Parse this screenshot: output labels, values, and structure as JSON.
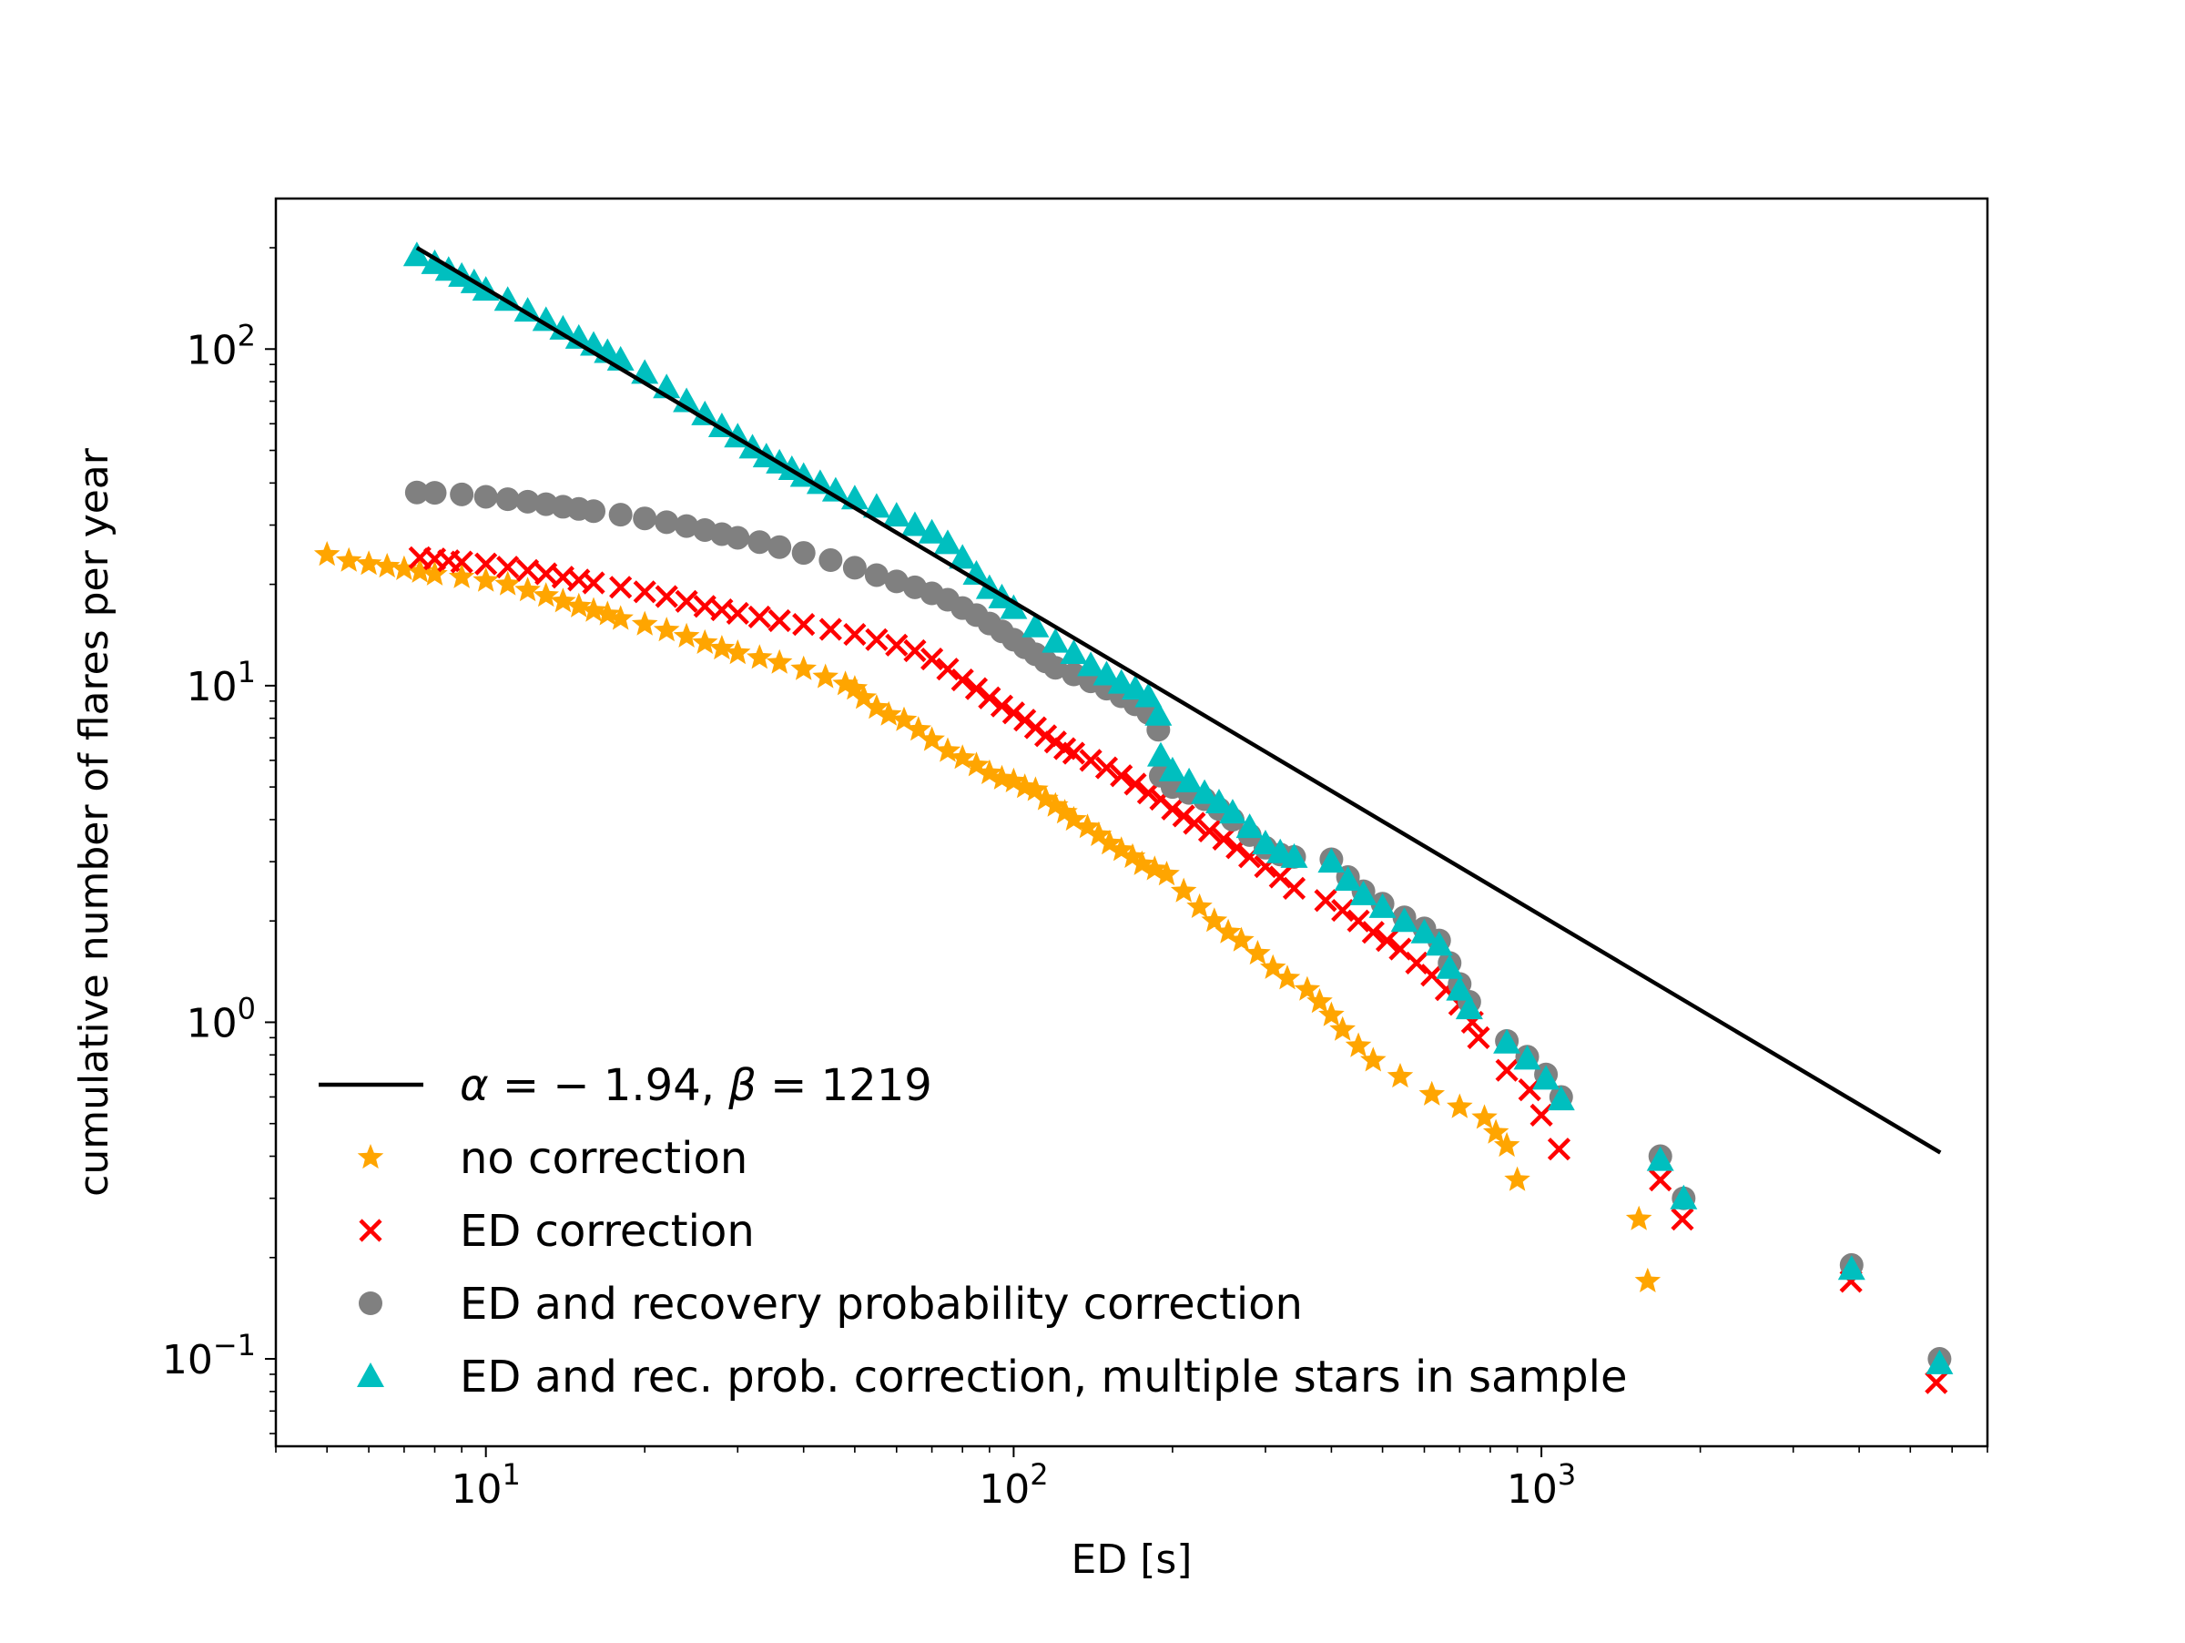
{
  "chart_data": {
    "type": "scatter",
    "title": "",
    "xlabel": "ED [s]",
    "ylabel": "cumulative number of flares per year",
    "xscale": "log",
    "yscale": "log",
    "xlim": [
      4,
      7000
    ],
    "ylim": [
      0.055,
      280
    ],
    "grid": false,
    "legend_position": "lower-left",
    "x_ticks": [
      {
        "value": 10,
        "base": "10",
        "exp": "1"
      },
      {
        "value": 100,
        "base": "10",
        "exp": "2"
      },
      {
        "value": 1000,
        "base": "10",
        "exp": "3"
      }
    ],
    "y_ticks": [
      {
        "value": 0.1,
        "base": "10",
        "exp": "−1"
      },
      {
        "value": 1,
        "base": "10",
        "exp": "0"
      },
      {
        "value": 10,
        "base": "10",
        "exp": "1"
      },
      {
        "value": 100,
        "base": "10",
        "exp": "2"
      }
    ],
    "fit_line": {
      "label_parts": {
        "alpha_sym": "α",
        "alpha_val": " = − 1.94, ",
        "beta_sym": "β",
        "beta_val": " = 1219"
      },
      "color": "#000000",
      "x": [
        7.4,
        5700
      ],
      "y": [
        200,
        0.41
      ]
    },
    "series": [
      {
        "name": "no correction",
        "marker": "star",
        "color": "#FFA500",
        "points": [
          [
            5,
            24.5
          ],
          [
            5.5,
            23.5
          ],
          [
            6,
            23
          ],
          [
            6.5,
            22.6
          ],
          [
            7,
            22.2
          ],
          [
            7.5,
            21.8
          ],
          [
            8,
            21.4
          ],
          [
            9,
            21
          ],
          [
            10,
            20.5
          ],
          [
            11,
            20
          ],
          [
            12,
            19.2
          ],
          [
            13,
            18.5
          ],
          [
            14,
            17.8
          ],
          [
            15,
            17.2
          ],
          [
            16,
            16.7
          ],
          [
            17,
            16.3
          ],
          [
            18,
            15.8
          ],
          [
            20,
            15.2
          ],
          [
            22,
            14.6
          ],
          [
            24,
            14
          ],
          [
            26,
            13.4
          ],
          [
            28,
            12.9
          ],
          [
            30,
            12.5
          ],
          [
            33,
            12.1
          ],
          [
            36,
            11.7
          ],
          [
            40,
            11.2
          ],
          [
            44,
            10.6
          ],
          [
            48,
            10.1
          ],
          [
            50,
            9.8
          ],
          [
            52,
            9.2
          ],
          [
            55,
            8.6
          ],
          [
            58,
            8.2
          ],
          [
            62,
            7.9
          ],
          [
            66,
            7.4
          ],
          [
            70,
            6.9
          ],
          [
            75,
            6.4
          ],
          [
            80,
            6.1
          ],
          [
            85,
            5.8
          ],
          [
            90,
            5.5
          ],
          [
            95,
            5.3
          ],
          [
            100,
            5.2
          ],
          [
            105,
            5.0
          ],
          [
            110,
            4.9
          ],
          [
            115,
            4.6
          ],
          [
            120,
            4.4
          ],
          [
            125,
            4.2
          ],
          [
            130,
            4.0
          ],
          [
            138,
            3.8
          ],
          [
            145,
            3.6
          ],
          [
            152,
            3.4
          ],
          [
            160,
            3.25
          ],
          [
            168,
            3.1
          ],
          [
            175,
            2.95
          ],
          [
            185,
            2.85
          ],
          [
            195,
            2.75
          ],
          [
            210,
            2.45
          ],
          [
            225,
            2.2
          ],
          [
            240,
            2.0
          ],
          [
            255,
            1.85
          ],
          [
            270,
            1.75
          ],
          [
            290,
            1.6
          ],
          [
            310,
            1.45
          ],
          [
            330,
            1.35
          ],
          [
            360,
            1.25
          ],
          [
            380,
            1.15
          ],
          [
            400,
            1.05
          ],
          [
            420,
            0.95
          ],
          [
            450,
            0.85
          ],
          [
            480,
            0.77
          ],
          [
            540,
            0.69
          ],
          [
            620,
            0.61
          ],
          [
            700,
            0.56
          ],
          [
            780,
            0.52
          ],
          [
            820,
            0.47
          ],
          [
            860,
            0.43
          ],
          [
            900,
            0.34
          ],
          [
            1530,
            0.26
          ],
          [
            1590,
            0.17
          ]
        ]
      },
      {
        "name": "ED correction",
        "marker": "x",
        "color": "#FF0000",
        "points": [
          [
            7.5,
            24
          ],
          [
            8,
            23.8
          ],
          [
            8.5,
            23.5
          ],
          [
            9,
            23.3
          ],
          [
            10,
            23
          ],
          [
            11,
            22.5
          ],
          [
            12,
            22
          ],
          [
            13,
            21.5
          ],
          [
            14,
            21
          ],
          [
            15,
            20.6
          ],
          [
            16,
            20.2
          ],
          [
            18,
            19.6
          ],
          [
            20,
            19
          ],
          [
            22,
            18.4
          ],
          [
            24,
            17.8
          ],
          [
            26,
            17.2
          ],
          [
            28,
            16.8
          ],
          [
            30,
            16.4
          ],
          [
            33,
            16
          ],
          [
            36,
            15.6
          ],
          [
            40,
            15.2
          ],
          [
            45,
            14.7
          ],
          [
            50,
            14.2
          ],
          [
            55,
            13.7
          ],
          [
            60,
            13.2
          ],
          [
            65,
            12.7
          ],
          [
            70,
            12
          ],
          [
            75,
            11.2
          ],
          [
            80,
            10.4
          ],
          [
            85,
            9.8
          ],
          [
            90,
            9.2
          ],
          [
            95,
            8.7
          ],
          [
            100,
            8.3
          ],
          [
            105,
            7.9
          ],
          [
            110,
            7.5
          ],
          [
            115,
            7.1
          ],
          [
            120,
            6.8
          ],
          [
            125,
            6.5
          ],
          [
            130,
            6.3
          ],
          [
            140,
            6.0
          ],
          [
            150,
            5.7
          ],
          [
            160,
            5.4
          ],
          [
            170,
            5.1
          ],
          [
            180,
            4.8
          ],
          [
            190,
            4.6
          ],
          [
            200,
            4.3
          ],
          [
            210,
            4.1
          ],
          [
            220,
            3.9
          ],
          [
            235,
            3.7
          ],
          [
            250,
            3.5
          ],
          [
            265,
            3.3
          ],
          [
            280,
            3.1
          ],
          [
            300,
            2.9
          ],
          [
            320,
            2.7
          ],
          [
            340,
            2.5
          ],
          [
            390,
            2.3
          ],
          [
            420,
            2.15
          ],
          [
            450,
            2.0
          ],
          [
            480,
            1.85
          ],
          [
            510,
            1.75
          ],
          [
            540,
            1.65
          ],
          [
            580,
            1.5
          ],
          [
            620,
            1.38
          ],
          [
            660,
            1.25
          ],
          [
            700,
            1.13
          ],
          [
            740,
            1.0
          ],
          [
            760,
            0.9
          ],
          [
            860,
            0.72
          ],
          [
            950,
            0.63
          ],
          [
            1000,
            0.53
          ],
          [
            1080,
            0.42
          ],
          [
            1680,
            0.34
          ],
          [
            1850,
            0.26
          ],
          [
            3860,
            0.17
          ],
          [
            5600,
            0.085
          ]
        ]
      },
      {
        "name": "ED and recovery probability correction",
        "marker": "circle",
        "color": "#808080",
        "points": [
          [
            7.4,
            37.5
          ],
          [
            8,
            37.4
          ],
          [
            9,
            37
          ],
          [
            10,
            36.4
          ],
          [
            11,
            35.8
          ],
          [
            12,
            35.2
          ],
          [
            13,
            34.6
          ],
          [
            14,
            34
          ],
          [
            15,
            33.5
          ],
          [
            16,
            33
          ],
          [
            18,
            32.2
          ],
          [
            20,
            31.4
          ],
          [
            22,
            30.6
          ],
          [
            24,
            29.8
          ],
          [
            26,
            29
          ],
          [
            28,
            28.2
          ],
          [
            30,
            27.5
          ],
          [
            33,
            26.7
          ],
          [
            36,
            25.8
          ],
          [
            40,
            24.8
          ],
          [
            45,
            23.6
          ],
          [
            50,
            22.4
          ],
          [
            55,
            21.3
          ],
          [
            60,
            20.4
          ],
          [
            65,
            19.6
          ],
          [
            70,
            18.8
          ],
          [
            75,
            18
          ],
          [
            80,
            17
          ],
          [
            85,
            16.2
          ],
          [
            90,
            15.3
          ],
          [
            95,
            14.5
          ],
          [
            100,
            13.7
          ],
          [
            105,
            13
          ],
          [
            110,
            12.4
          ],
          [
            115,
            11.8
          ],
          [
            120,
            11.3
          ],
          [
            130,
            10.8
          ],
          [
            140,
            10.3
          ],
          [
            150,
            9.8
          ],
          [
            160,
            9.3
          ],
          [
            170,
            8.8
          ],
          [
            180,
            8.3
          ],
          [
            188,
            7.4
          ],
          [
            190,
            5.4
          ],
          [
            200,
            5.0
          ],
          [
            215,
            4.8
          ],
          [
            230,
            4.6
          ],
          [
            245,
            4.3
          ],
          [
            260,
            4.0
          ],
          [
            280,
            3.6
          ],
          [
            300,
            3.3
          ],
          [
            320,
            3.15
          ],
          [
            340,
            3.1
          ],
          [
            400,
            3.05
          ],
          [
            430,
            2.7
          ],
          [
            460,
            2.45
          ],
          [
            500,
            2.25
          ],
          [
            550,
            2.05
          ],
          [
            600,
            1.9
          ],
          [
            640,
            1.75
          ],
          [
            670,
            1.5
          ],
          [
            700,
            1.3
          ],
          [
            730,
            1.15
          ],
          [
            860,
            0.88
          ],
          [
            940,
            0.79
          ],
          [
            1020,
            0.7
          ],
          [
            1090,
            0.6
          ],
          [
            1680,
            0.4
          ],
          [
            1860,
            0.3
          ],
          [
            3870,
            0.19
          ],
          [
            5680,
            0.1
          ]
        ]
      },
      {
        "name": "ED and rec. prob. correction, multiple stars in sample",
        "marker": "triangle",
        "color": "#00BFBF",
        "points": [
          [
            7.4,
            190
          ],
          [
            8,
            180
          ],
          [
            8.5,
            172
          ],
          [
            9,
            165
          ],
          [
            9.5,
            158
          ],
          [
            10,
            150
          ],
          [
            11,
            140
          ],
          [
            12,
            130
          ],
          [
            13,
            122
          ],
          [
            14,
            115
          ],
          [
            15,
            108
          ],
          [
            16,
            103
          ],
          [
            17,
            98
          ],
          [
            18,
            93
          ],
          [
            20,
            85
          ],
          [
            22,
            77
          ],
          [
            24,
            70
          ],
          [
            26,
            64
          ],
          [
            28,
            59
          ],
          [
            30,
            55
          ],
          [
            32,
            51
          ],
          [
            34,
            48
          ],
          [
            36,
            46
          ],
          [
            38,
            44
          ],
          [
            40,
            42
          ],
          [
            43,
            40
          ],
          [
            46,
            38
          ],
          [
            50,
            36
          ],
          [
            55,
            34
          ],
          [
            60,
            32
          ],
          [
            65,
            30
          ],
          [
            70,
            28.5
          ],
          [
            75,
            26.5
          ],
          [
            80,
            24
          ],
          [
            85,
            21.5
          ],
          [
            90,
            19.5
          ],
          [
            95,
            18.3
          ],
          [
            100,
            17
          ],
          [
            110,
            15
          ],
          [
            120,
            13.5
          ],
          [
            130,
            12.5
          ],
          [
            140,
            11.5
          ],
          [
            150,
            10.8
          ],
          [
            160,
            10.2
          ],
          [
            170,
            9.8
          ],
          [
            180,
            9.3
          ],
          [
            188,
            8.2
          ],
          [
            190,
            6.2
          ],
          [
            200,
            5.6
          ],
          [
            215,
            5.2
          ],
          [
            230,
            4.8
          ],
          [
            245,
            4.5
          ],
          [
            260,
            4.2
          ],
          [
            280,
            3.8
          ],
          [
            300,
            3.4
          ],
          [
            320,
            3.2
          ],
          [
            340,
            3.1
          ],
          [
            400,
            3.0
          ],
          [
            430,
            2.65
          ],
          [
            460,
            2.4
          ],
          [
            500,
            2.2
          ],
          [
            550,
            2.0
          ],
          [
            600,
            1.85
          ],
          [
            640,
            1.7
          ],
          [
            670,
            1.45
          ],
          [
            700,
            1.25
          ],
          [
            730,
            1.1
          ],
          [
            860,
            0.87
          ],
          [
            940,
            0.78
          ],
          [
            1020,
            0.68
          ],
          [
            1090,
            0.59
          ],
          [
            1680,
            0.39
          ],
          [
            1860,
            0.3
          ],
          [
            3870,
            0.185
          ],
          [
            5680,
            0.097
          ]
        ]
      }
    ]
  }
}
